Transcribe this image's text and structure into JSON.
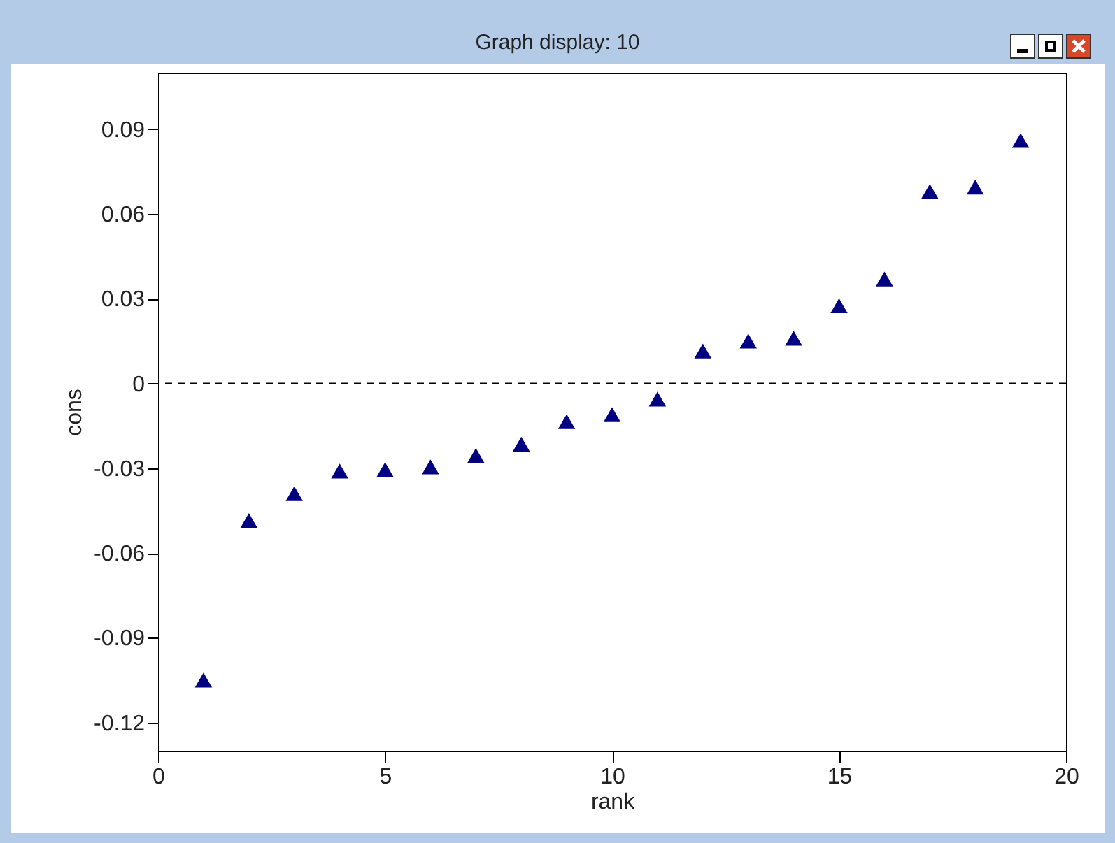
{
  "chart_data": {
    "type": "scatter",
    "title": "Graph display: 10",
    "xlabel": "rank",
    "ylabel": "cons",
    "x": [
      1,
      2,
      3,
      4,
      5,
      6,
      7,
      8,
      9,
      10,
      11,
      12,
      13,
      14,
      15,
      16,
      17,
      18,
      19
    ],
    "series": [
      {
        "color": "#000080",
        "values": [
          -0.105,
          -0.0485,
          -0.039,
          -0.031,
          -0.0305,
          -0.0295,
          -0.0255,
          -0.0215,
          -0.0135,
          -0.011,
          -0.0055,
          0.0115,
          0.015,
          0.016,
          0.0275,
          0.037,
          0.068,
          0.0695,
          0.086
        ]
      }
    ],
    "xlim": [
      0,
      20
    ],
    "xticks": [
      0,
      5,
      10,
      15,
      20
    ],
    "ylim": [
      -0.13,
      0.11
    ],
    "yticks": [
      -0.12,
      -0.09,
      -0.06,
      -0.03,
      0,
      0.03,
      0.06,
      0.09
    ],
    "ref_lines": [
      {
        "axis": "y",
        "value": 0,
        "line_style": "dashed",
        "color": "#000000"
      }
    ],
    "marker": "triangle",
    "grid": false
  }
}
